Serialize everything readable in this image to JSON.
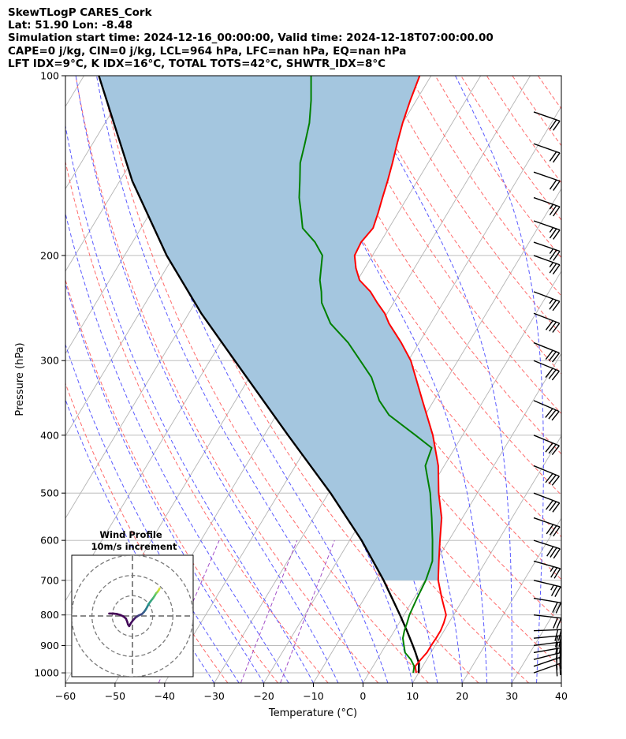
{
  "header": {
    "line1": "SkewTLogP CARES_Cork",
    "line2": "Lat: 51.90   Lon: -8.48",
    "line3": "Simulation start time: 2024-12-16_00:00:00, Valid time: 2024-12-18T07:00:00.00",
    "line4": "CAPE=0 j/kg, CIN=0 j/kg, LCL=964 hPa, LFC=nan hPa, EQ=nan hPa",
    "line5": "LFT IDX=9°C, K IDX=16°C, TOTAL TOTS=42°C, SHWTR_IDX=8°C"
  },
  "colors": {
    "temperature": "#ff0000",
    "dewpoint": "#008000",
    "parcel": "#000000",
    "cape_fill": "#a4c6df",
    "dry_adiabat": "#ff6b6b",
    "moist_adiabat": "#5a5aff",
    "mixing_ratio": "#a24ec7",
    "isotherm": "#b3b3b3"
  },
  "chart_data": {
    "type": "line",
    "title": "SkewTLogP CARES_Cork",
    "xlabel": "Temperature (°C)",
    "ylabel": "Pressure (hPa)",
    "xlim": [
      -60,
      40
    ],
    "ylim": [
      1040,
      100
    ],
    "x_ticks": [
      -60,
      -50,
      -40,
      -30,
      -20,
      -10,
      0,
      10,
      20,
      30,
      40
    ],
    "x_tick_labels": [
      "−60",
      "−50",
      "−40",
      "−30",
      "−20",
      "−10",
      "0",
      "10",
      "20",
      "30",
      "40"
    ],
    "y_ticks": [
      1000,
      900,
      800,
      700,
      600,
      500,
      400,
      300,
      200,
      100
    ],
    "y_tick_labels": [
      "1000",
      "900",
      "800",
      "700",
      "600",
      "500",
      "400",
      "300",
      "200",
      "100"
    ],
    "skew_deg_per_decade": 72.5,
    "series": [
      {
        "name": "Temperature",
        "points": [
          [
            1000,
            9.5
          ],
          [
            975,
            8.5
          ],
          [
            950,
            8.8
          ],
          [
            925,
            9.2
          ],
          [
            900,
            9.2
          ],
          [
            875,
            9.3
          ],
          [
            850,
            9.3
          ],
          [
            825,
            9.0
          ],
          [
            800,
            8.5
          ],
          [
            750,
            5.6
          ],
          [
            700,
            2.7
          ],
          [
            650,
            0.5
          ],
          [
            600,
            -1.8
          ],
          [
            550,
            -4.2
          ],
          [
            500,
            -7.8
          ],
          [
            450,
            -11.2
          ],
          [
            400,
            -16.0
          ],
          [
            350,
            -22.3
          ],
          [
            300,
            -29.5
          ],
          [
            280,
            -33.6
          ],
          [
            260,
            -38.4
          ],
          [
            250,
            -40.5
          ],
          [
            240,
            -43.3
          ],
          [
            230,
            -46.0
          ],
          [
            220,
            -49.6
          ],
          [
            210,
            -51.8
          ],
          [
            200,
            -53.6
          ],
          [
            190,
            -53.9
          ],
          [
            180,
            -53.2
          ],
          [
            170,
            -54.0
          ],
          [
            160,
            -55.0
          ],
          [
            150,
            -56.0
          ],
          [
            140,
            -57.2
          ],
          [
            130,
            -58.6
          ],
          [
            120,
            -60.0
          ],
          [
            110,
            -61.2
          ],
          [
            100,
            -62.3
          ]
        ]
      },
      {
        "name": "Dewpoint",
        "points": [
          [
            1000,
            8.9
          ],
          [
            975,
            8.3
          ],
          [
            950,
            6.8
          ],
          [
            925,
            4.8
          ],
          [
            900,
            3.7
          ],
          [
            875,
            2.6
          ],
          [
            850,
            2.0
          ],
          [
            825,
            1.6
          ],
          [
            800,
            1.1
          ],
          [
            750,
            0.6
          ],
          [
            700,
            0.2
          ],
          [
            650,
            -0.8
          ],
          [
            600,
            -3.3
          ],
          [
            550,
            -6.2
          ],
          [
            500,
            -9.5
          ],
          [
            450,
            -13.8
          ],
          [
            420,
            -14.7
          ],
          [
            400,
            -19.5
          ],
          [
            370,
            -27.3
          ],
          [
            350,
            -31.0
          ],
          [
            320,
            -35.4
          ],
          [
            300,
            -39.7
          ],
          [
            280,
            -44.3
          ],
          [
            260,
            -50.2
          ],
          [
            240,
            -54.5
          ],
          [
            230,
            -55.9
          ],
          [
            220,
            -57.6
          ],
          [
            200,
            -60.1
          ],
          [
            190,
            -63.2
          ],
          [
            180,
            -67.4
          ],
          [
            170,
            -69.5
          ],
          [
            160,
            -71.8
          ],
          [
            150,
            -73.7
          ],
          [
            140,
            -75.8
          ],
          [
            130,
            -77.2
          ],
          [
            120,
            -78.8
          ],
          [
            110,
            -81.2
          ],
          [
            100,
            -84.2
          ]
        ]
      },
      {
        "name": "Parcel",
        "points": [
          [
            1000,
            10.0
          ],
          [
            964,
            8.9
          ],
          [
            925,
            6.9
          ],
          [
            900,
            5.5
          ],
          [
            850,
            2.5
          ],
          [
            800,
            -0.8
          ],
          [
            700,
            -8.3
          ],
          [
            600,
            -17.6
          ],
          [
            500,
            -29.6
          ],
          [
            400,
            -45.2
          ],
          [
            300,
            -65.0
          ],
          [
            250,
            -77.5
          ],
          [
            200,
            -91.5
          ],
          [
            150,
            -107.5
          ],
          [
            100,
            -127.0
          ]
        ]
      }
    ],
    "wind_barbs": [
      {
        "p": 1000,
        "u": 18.0,
        "v": 6.4
      },
      {
        "p": 975,
        "u": 19.2,
        "v": 6.5
      },
      {
        "p": 950,
        "u": 20.3,
        "v": 5.2
      },
      {
        "p": 925,
        "u": 21.9,
        "v": 3.8
      },
      {
        "p": 900,
        "u": 21.6,
        "v": 2.8
      },
      {
        "p": 875,
        "u": 21.3,
        "v": 2.0
      },
      {
        "p": 850,
        "u": 21.0,
        "v": 0.8
      },
      {
        "p": 800,
        "u": 20.4,
        "v": -2.3
      },
      {
        "p": 750,
        "u": 21.0,
        "v": -3.5
      },
      {
        "p": 700,
        "u": 22.3,
        "v": -5.3
      },
      {
        "p": 650,
        "u": 26.0,
        "v": -7.3
      },
      {
        "p": 600,
        "u": 27.4,
        "v": -8.8
      },
      {
        "p": 550,
        "u": 28.0,
        "v": -9.7
      },
      {
        "p": 500,
        "u": 27.0,
        "v": -10.3
      },
      {
        "p": 450,
        "u": 26.2,
        "v": -10.8
      },
      {
        "p": 400,
        "u": 27.2,
        "v": -11.2
      },
      {
        "p": 350,
        "u": 27.8,
        "v": -11.8
      },
      {
        "p": 300,
        "u": 27.5,
        "v": -11.3
      },
      {
        "p": 280,
        "u": 27.0,
        "v": -10.8
      },
      {
        "p": 250,
        "u": 26.4,
        "v": -10.2
      },
      {
        "p": 230,
        "u": 25.6,
        "v": -9.6
      },
      {
        "p": 200,
        "u": 25.0,
        "v": -9.0
      },
      {
        "p": 190,
        "u": 24.6,
        "v": -8.5
      },
      {
        "p": 175,
        "u": 23.5,
        "v": -8.2
      },
      {
        "p": 160,
        "u": 21.9,
        "v": -7.7
      },
      {
        "p": 145,
        "u": 20.5,
        "v": -7.1
      },
      {
        "p": 130,
        "u": 18.7,
        "v": -6.6
      },
      {
        "p": 115,
        "u": 17.3,
        "v": -6.0
      }
    ],
    "hodograph": {
      "title_line1": "Wind Profile",
      "title_line2": "10m/s increment",
      "rings_ms": [
        10,
        20,
        30
      ],
      "xlim": [
        -30,
        30
      ],
      "ylim": [
        -30,
        30
      ],
      "points": [
        [
          -11.5,
          1.2
        ],
        [
          -9.5,
          1.2
        ],
        [
          -7.8,
          1.0
        ],
        [
          -6.0,
          0.5
        ],
        [
          -4.5,
          -0.2
        ],
        [
          -3.2,
          -1.3
        ],
        [
          -2.6,
          -2.8
        ],
        [
          -2.2,
          -4.2
        ],
        [
          -1.6,
          -5.0
        ],
        [
          -0.8,
          -3.6
        ],
        [
          0.2,
          -2.2
        ],
        [
          1.5,
          -0.8
        ],
        [
          3.0,
          0.2
        ],
        [
          4.8,
          1.0
        ],
        [
          5.8,
          2.1
        ],
        [
          6.6,
          3.2
        ],
        [
          7.3,
          4.5
        ],
        [
          8.0,
          5.9
        ],
        [
          9.1,
          7.4
        ],
        [
          10.2,
          8.8
        ],
        [
          11.0,
          10.0
        ],
        [
          11.7,
          11.2
        ],
        [
          12.4,
          11.9
        ],
        [
          13.0,
          12.8
        ],
        [
          13.4,
          13.6
        ]
      ]
    }
  }
}
